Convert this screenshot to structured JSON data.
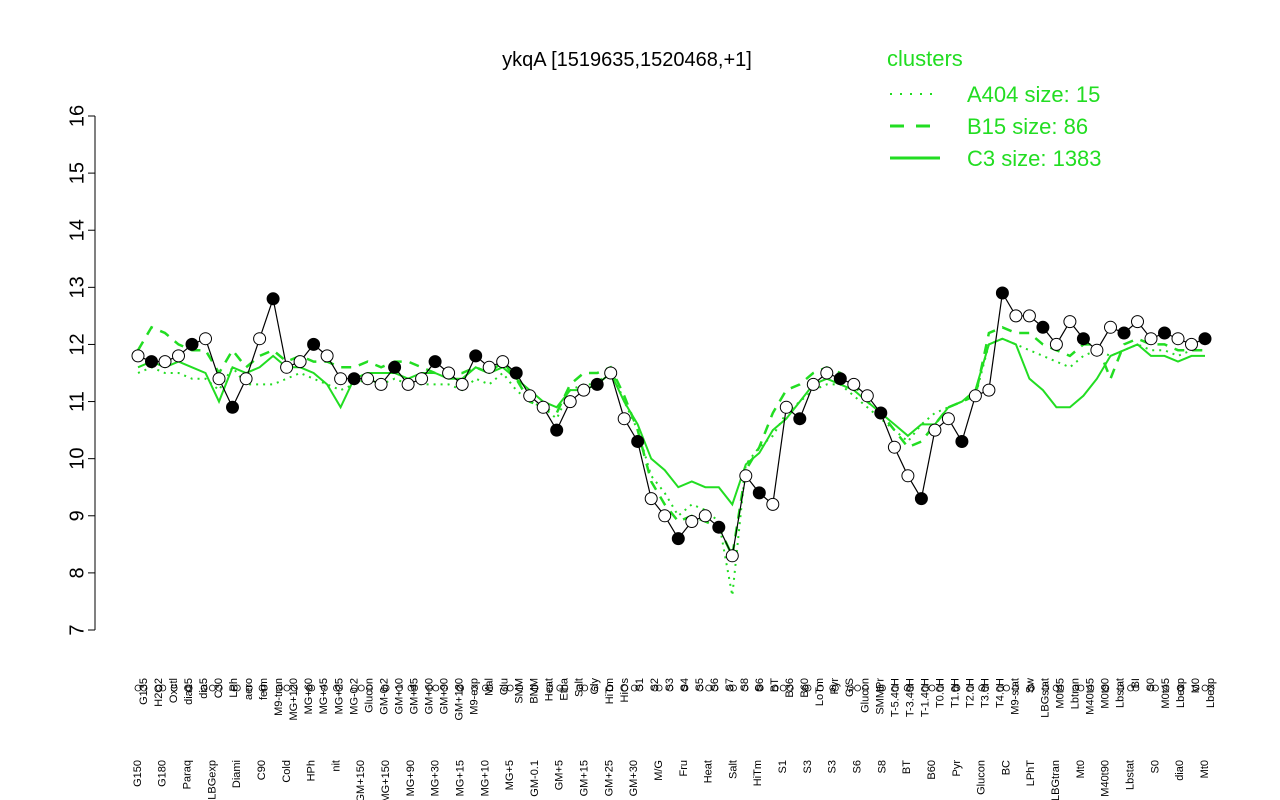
{
  "chart_data": {
    "type": "line",
    "title": "ykqA [1519635,1520468,+1]",
    "xlabel": "",
    "ylabel": "",
    "ylim": [
      7,
      16
    ],
    "yticks": [
      7,
      8,
      9,
      10,
      11,
      12,
      13,
      14,
      15,
      16
    ],
    "grid": false,
    "legend": {
      "title": "clusters",
      "position": "top-right",
      "entries": [
        {
          "label": "A404 size: 15",
          "style": "dotted"
        },
        {
          "label": "B15 size: 86",
          "style": "dashed"
        },
        {
          "label": "C3 size: 1383",
          "style": "solid"
        }
      ]
    },
    "colors": {
      "cluster_lines": "#22dd22",
      "points_fill": "#ffffff",
      "points_dark": "#000000",
      "axis": "#000000"
    },
    "x_tick_labels_upper": [
      "G135",
      "H2O2",
      "Oxctl",
      "dia15",
      "dia5",
      "C30",
      "LPh",
      "aero",
      "ferm",
      "M9-tran",
      "MG+120",
      "MG+60",
      "MG+45",
      "MG+25",
      "MG-0.2",
      "Glucon",
      "GM-0.2",
      "GM+10",
      "GM+45",
      "GM+60",
      "GM+90",
      "GM+120",
      "M9-exp",
      "Mal",
      "Glu",
      "SMM",
      "BMM",
      "Heat",
      "Etha",
      "Salt",
      "Gly",
      "HiTm",
      "HiOs",
      "S1",
      "S2",
      "S3",
      "S4",
      "S5",
      "S6",
      "S7",
      "S8",
      "S6",
      "BT",
      "B36",
      "B60",
      "LoTm",
      "Pyr",
      "G/S",
      "Glucon",
      "SMMPr",
      "T-5.40H",
      "T-3.40H",
      "T-1.40H",
      "T0.0H",
      "T1.0H",
      "T2.0H",
      "T3.0H",
      "T4.0H",
      "M9-stat",
      "Sw",
      "LBGstat",
      "M0t45",
      "Lbtran",
      "M40t45",
      "M0t90",
      "Lbstat",
      "BI",
      "S0",
      "M0t45",
      "Lbexp",
      "M0",
      "Lbexp"
    ],
    "x_tick_labels_lower": [
      "G150",
      "G180",
      "Paraq",
      "LBGexp",
      "Diami",
      "C90",
      "Cold",
      "HPh",
      "nit",
      "GM+150",
      "MG+150",
      "MG+90",
      "MG+30",
      "MG+15",
      "MG+10",
      "MG+5",
      "GM-0.1",
      "GM+5",
      "GM+15",
      "GM+25",
      "GM+30",
      "M/G",
      "Fru",
      "Heat",
      "Salt",
      "HiTm",
      "S1",
      "S3",
      "S3",
      "S6",
      "S8",
      "BT",
      "B60",
      "Pyr",
      "Glucon",
      "BC",
      "LPhT",
      "LBGtran",
      "Mt0",
      "M40t90",
      "Lbstat",
      "S0",
      "dia0",
      "Mt0"
    ],
    "series": [
      {
        "name": "observed (points)",
        "x": [
          1,
          2,
          3,
          4,
          5,
          6,
          7,
          8,
          9,
          10,
          11,
          12,
          13,
          14,
          15,
          16,
          17,
          18,
          19,
          20,
          21,
          22,
          23,
          24,
          25,
          26,
          27,
          28,
          29,
          30,
          31,
          32,
          33,
          34,
          35,
          36,
          37,
          38,
          39,
          40,
          41,
          42,
          43,
          44,
          45,
          46,
          47,
          48,
          49,
          50,
          51,
          52,
          53,
          54,
          55,
          56,
          57,
          58,
          59,
          60,
          61,
          62,
          63,
          64,
          65,
          66,
          67,
          68,
          69,
          70,
          71,
          72,
          73,
          74,
          75,
          76,
          77,
          78,
          79,
          80
        ],
        "values": [
          11.8,
          11.7,
          11.7,
          11.8,
          12.0,
          12.1,
          11.4,
          10.9,
          11.4,
          12.1,
          12.8,
          11.6,
          11.7,
          12.0,
          11.8,
          11.4,
          11.4,
          11.4,
          11.3,
          11.6,
          11.3,
          11.4,
          11.7,
          11.5,
          11.3,
          11.8,
          11.6,
          11.7,
          11.5,
          11.1,
          10.9,
          10.5,
          11.0,
          11.2,
          11.3,
          11.5,
          10.7,
          10.3,
          9.3,
          9.0,
          8.6,
          8.9,
          9.0,
          8.8,
          8.3,
          9.7,
          9.4,
          9.2,
          10.9,
          10.7,
          11.3,
          11.5,
          11.4,
          11.3,
          11.1,
          10.8,
          10.2,
          9.7,
          9.3,
          10.5,
          10.7,
          10.3,
          11.1,
          11.2,
          12.9,
          12.5,
          12.5,
          12.3,
          12.0,
          12.4,
          12.1,
          11.9,
          12.3,
          12.2,
          12.4,
          12.1,
          12.2,
          12.1,
          12.0,
          12.1
        ]
      },
      {
        "name": "C3 size: 1383",
        "values": [
          11.6,
          11.7,
          11.6,
          11.7,
          11.6,
          11.5,
          11.0,
          11.6,
          11.5,
          11.6,
          11.8,
          11.6,
          11.6,
          11.5,
          11.3,
          10.9,
          11.4,
          11.5,
          11.5,
          11.5,
          11.4,
          11.5,
          11.5,
          11.4,
          11.4,
          11.6,
          11.5,
          11.6,
          11.4,
          11.2,
          11.0,
          10.9,
          11.2,
          11.2,
          11.3,
          11.5,
          11.0,
          10.6,
          10.0,
          9.8,
          9.5,
          9.6,
          9.5,
          9.5,
          9.2,
          9.9,
          10.1,
          10.5,
          10.7,
          11.0,
          11.3,
          11.4,
          11.3,
          11.2,
          11.0,
          10.8,
          10.6,
          10.4,
          10.6,
          10.6,
          10.9,
          11.0,
          11.2,
          12.0,
          12.1,
          12.0,
          11.4,
          11.2,
          10.9,
          10.9,
          11.1,
          11.4,
          11.8,
          11.9,
          12.0,
          11.8,
          11.8,
          11.7,
          11.8,
          11.8
        ]
      },
      {
        "name": "B15 size: 86",
        "values": [
          11.9,
          12.3,
          12.2,
          12.0,
          11.9,
          11.9,
          11.5,
          11.9,
          11.6,
          11.8,
          11.9,
          11.7,
          11.8,
          11.7,
          11.7,
          11.6,
          11.6,
          11.7,
          11.6,
          11.7,
          11.7,
          11.6,
          11.5,
          11.5,
          11.5,
          11.6,
          11.5,
          11.7,
          11.4,
          11.0,
          10.9,
          10.8,
          11.3,
          11.5,
          11.5,
          11.6,
          11.1,
          10.5,
          9.6,
          9.2,
          8.9,
          9.0,
          8.9,
          8.8,
          8.3,
          9.8,
          10.2,
          10.8,
          11.2,
          11.3,
          11.5,
          11.6,
          11.5,
          11.3,
          11.0,
          10.8,
          10.5,
          10.2,
          10.3,
          10.6,
          10.9,
          11.0,
          11.1,
          12.2,
          12.3,
          12.2,
          12.2,
          12.0,
          11.9,
          11.8,
          12.0,
          12.0,
          11.4,
          12.0,
          12.1,
          12.0,
          12.0,
          11.9,
          11.9,
          11.9
        ]
      },
      {
        "name": "A404 size: 15",
        "values": [
          11.5,
          11.6,
          11.5,
          11.5,
          11.4,
          11.4,
          11.2,
          11.6,
          11.3,
          11.3,
          11.3,
          11.4,
          11.5,
          11.4,
          11.3,
          11.2,
          11.3,
          11.4,
          11.3,
          11.4,
          11.3,
          11.3,
          11.3,
          11.3,
          11.2,
          11.4,
          11.3,
          11.5,
          11.2,
          11.0,
          10.9,
          10.7,
          11.2,
          11.3,
          11.3,
          11.6,
          11.0,
          10.5,
          9.7,
          9.4,
          9.0,
          9.2,
          9.1,
          8.9,
          7.6,
          9.9,
          10.2,
          10.4,
          10.8,
          11.0,
          11.2,
          11.3,
          11.3,
          11.1,
          10.9,
          10.7,
          10.5,
          10.3,
          10.6,
          10.8,
          10.9,
          11.0,
          11.1,
          12.0,
          12.1,
          12.0,
          11.9,
          11.8,
          11.7,
          11.6,
          11.8,
          11.9,
          11.8,
          11.9,
          12.0,
          11.9,
          11.9,
          11.8,
          11.9,
          11.9
        ]
      }
    ]
  }
}
